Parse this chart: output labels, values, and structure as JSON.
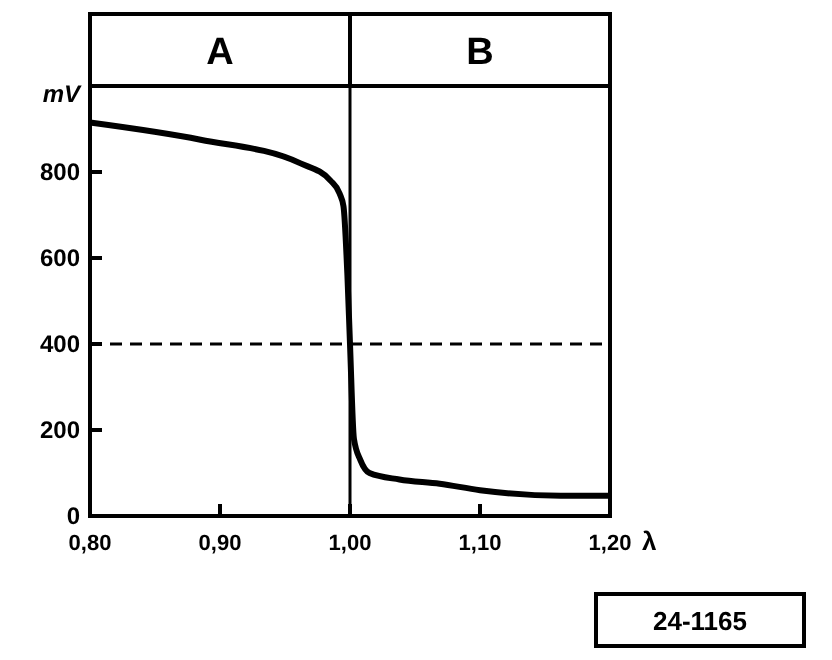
{
  "chart_data": {
    "type": "line",
    "xlabel": "λ",
    "ylabel": "mV",
    "x": [
      0.8,
      0.885,
      0.962,
      0.985,
      0.992,
      0.995,
      0.998,
      1.0,
      1.003,
      1.008,
      1.015,
      1.038,
      1.069,
      1.1,
      1.162,
      1.2
    ],
    "series": [
      {
        "color": "#000000",
        "values": [
          915,
          875,
          820,
          780,
          750,
          720,
          560,
          400,
          180,
          130,
          100,
          85,
          75,
          60,
          47,
          47
        ]
      }
    ],
    "xlim": [
      0.8,
      1.2
    ],
    "xticks": [
      {
        "value": 0.8,
        "label": "0,80"
      },
      {
        "value": 0.9,
        "label": "0,90"
      },
      {
        "value": 1.0,
        "label": "1,00"
      },
      {
        "value": 1.1,
        "label": "1,10"
      },
      {
        "value": 1.2,
        "label": "1,20"
      }
    ],
    "ylim": [
      0,
      1000
    ],
    "yticks": [
      0,
      200,
      400,
      600,
      800
    ],
    "ref_lines": [
      {
        "axis": "y",
        "value": 400,
        "line_style": "dashed",
        "color": "#000000"
      },
      {
        "axis": "x",
        "value": 1.0,
        "line_style": "solid",
        "color": "#000000"
      }
    ],
    "annotations": [
      "A",
      "B",
      "24-1165"
    ],
    "grid": false,
    "marker": "none",
    "line_style": "solid"
  }
}
